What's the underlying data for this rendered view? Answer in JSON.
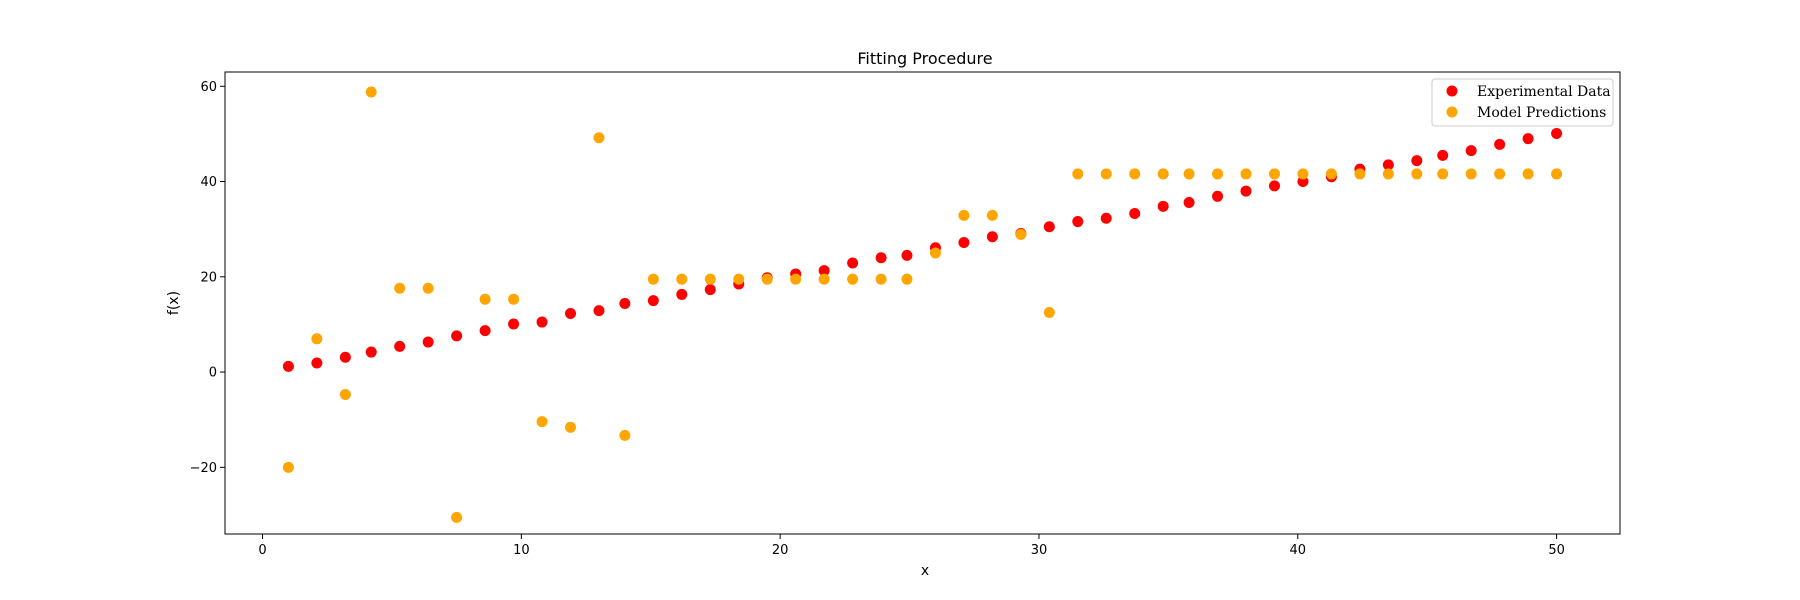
{
  "chart_data": {
    "type": "scatter",
    "title": "Fitting Procedure",
    "xlabel": "x",
    "ylabel": "f(x)",
    "xlim": [
      -1.45,
      52.45
    ],
    "ylim": [
      -34,
      63
    ],
    "xticks": [
      0,
      10,
      20,
      30,
      40,
      50
    ],
    "yticks": [
      -20,
      0,
      20,
      40,
      60
    ],
    "grid": false,
    "legend_position": "top-right",
    "series": [
      {
        "name": "Experimental Data",
        "color": "#ff0000",
        "x": [
          1.0,
          2.1,
          3.2,
          4.2,
          5.3,
          6.4,
          7.5,
          8.6,
          9.7,
          10.8,
          11.9,
          13.0,
          14.0,
          15.1,
          16.2,
          17.3,
          18.4,
          19.5,
          20.6,
          21.7,
          22.8,
          23.9,
          24.9,
          26.0,
          27.1,
          28.2,
          29.3,
          30.4,
          31.5,
          32.6,
          33.7,
          34.8,
          35.8,
          36.9,
          38.0,
          39.1,
          40.2,
          41.3,
          42.4,
          43.5,
          44.6,
          45.6,
          46.7,
          47.8,
          48.9,
          50.0
        ],
        "y": [
          1.2,
          1.9,
          3.1,
          4.2,
          5.4,
          6.3,
          7.6,
          8.7,
          10.1,
          10.5,
          12.3,
          12.9,
          14.4,
          15.0,
          16.3,
          17.3,
          18.5,
          19.8,
          20.6,
          21.3,
          22.9,
          24.0,
          24.5,
          26.1,
          27.2,
          28.4,
          29.1,
          30.5,
          31.6,
          32.3,
          33.3,
          34.8,
          35.6,
          36.9,
          38.0,
          39.1,
          40.0,
          41.0,
          42.6,
          43.5,
          44.4,
          45.5,
          46.5,
          47.8,
          49.0,
          50.1
        ]
      },
      {
        "name": "Model Predictions",
        "color": "#ffa500",
        "x": [
          1.0,
          2.1,
          3.2,
          4.2,
          5.3,
          6.4,
          7.5,
          8.6,
          9.7,
          10.8,
          11.9,
          13.0,
          14.0,
          15.1,
          16.2,
          17.3,
          18.4,
          19.5,
          20.6,
          21.7,
          22.8,
          23.9,
          24.9,
          26.0,
          27.1,
          28.2,
          29.3,
          30.4,
          31.5,
          32.6,
          33.7,
          34.8,
          35.8,
          36.9,
          38.0,
          39.1,
          40.2,
          41.3,
          42.4,
          43.5,
          44.6,
          45.6,
          46.7,
          47.8,
          48.9,
          50.0
        ],
        "y": [
          -20.0,
          7.0,
          -4.7,
          58.8,
          17.6,
          17.6,
          -30.5,
          15.3,
          15.3,
          -10.4,
          -11.6,
          49.2,
          -13.3,
          19.5,
          19.5,
          19.5,
          19.5,
          19.5,
          19.5,
          19.5,
          19.5,
          19.5,
          19.5,
          25.0,
          32.9,
          32.9,
          28.9,
          12.5,
          41.6,
          41.6,
          41.6,
          41.6,
          41.6,
          41.6,
          41.6,
          41.6,
          41.6,
          41.6,
          41.6,
          41.6,
          41.6,
          41.6,
          41.6,
          41.6,
          41.6,
          41.6
        ]
      }
    ]
  }
}
